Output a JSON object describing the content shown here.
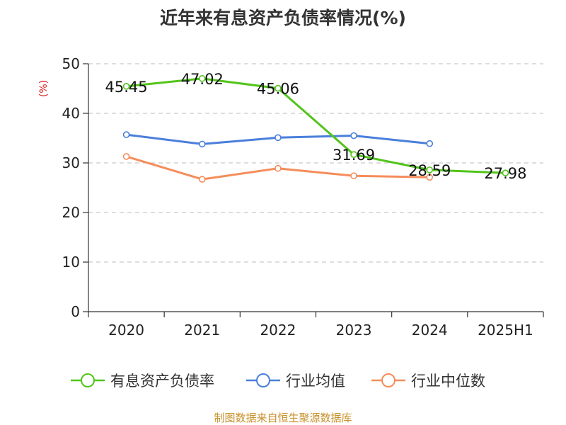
{
  "chart_data": {
    "type": "line",
    "title": "近年来有息资产负债率情况(%)",
    "ylabel": "(%)",
    "xlabel": "",
    "categories": [
      "2020",
      "2021",
      "2022",
      "2023",
      "2024",
      "2025H1"
    ],
    "ylim": [
      0,
      50
    ],
    "yticks": [
      0,
      10,
      20,
      30,
      40,
      50
    ],
    "grid": "horizontal dashed",
    "legend_position": "bottom",
    "series": [
      {
        "name": "有息资产负债率",
        "color": "#52c41a",
        "values": [
          45.45,
          47.02,
          45.06,
          31.69,
          28.59,
          27.98
        ],
        "labels": [
          "45.45",
          "47.02",
          "45.06",
          "31.69",
          "28.59",
          "27.98"
        ]
      },
      {
        "name": "行业均值",
        "color": "#4a7fdb",
        "values": [
          35.7,
          33.8,
          35.1,
          35.5,
          33.9,
          null
        ]
      },
      {
        "name": "行业中位数",
        "color": "#f58d5b",
        "values": [
          31.3,
          26.7,
          28.9,
          27.4,
          27.1,
          null
        ]
      }
    ],
    "source": "制图数据来自恒生聚源数据库"
  }
}
